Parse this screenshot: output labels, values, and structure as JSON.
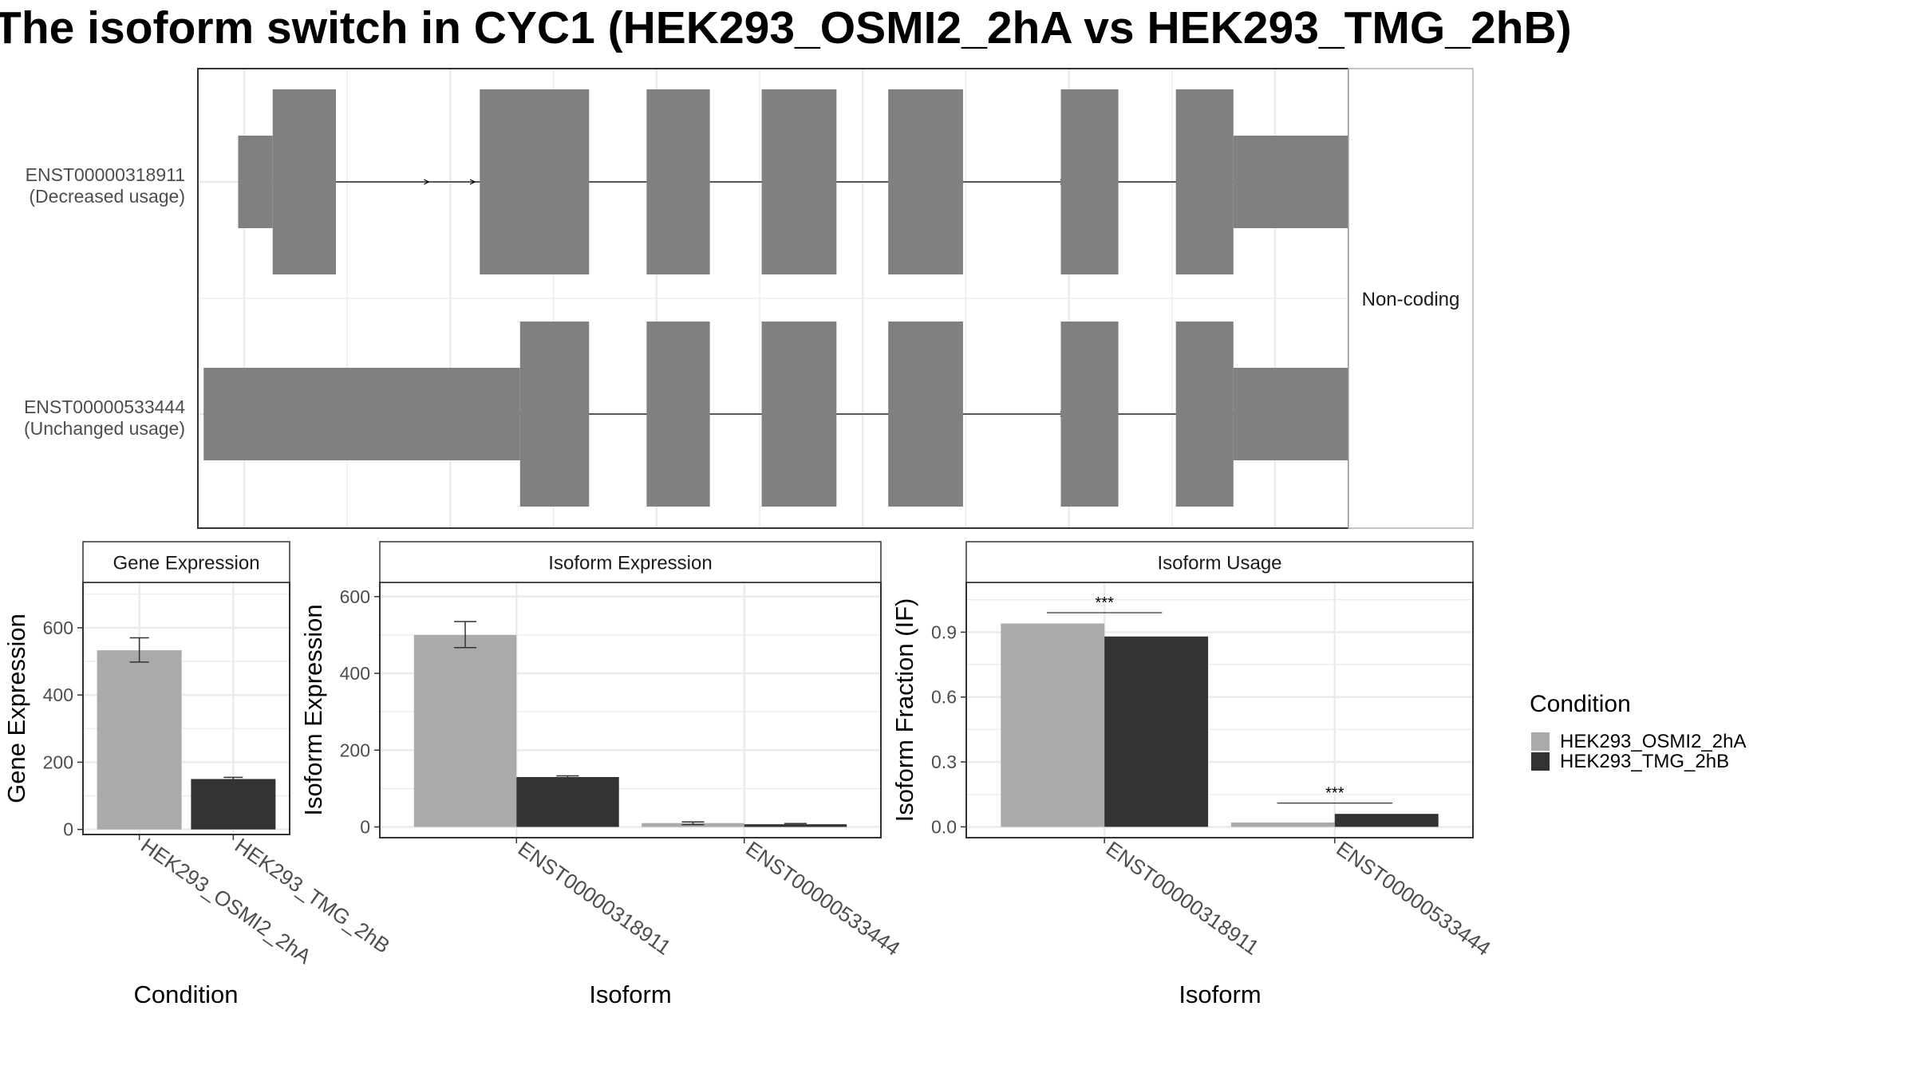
{
  "title": "The isoform switch in CYC1 (HEK293_OSMI2_2hA vs HEK293_TMG_2hB)",
  "colors": {
    "condition_a": "#aaaaaa",
    "condition_b": "#333333",
    "exon": "#808080",
    "grid": "#ebebeb",
    "panel_border": "#333333",
    "strip_border": "#b3b3b3",
    "text_dark": "#1a1a1a",
    "tick_text": "#4d4d4d"
  },
  "legend": {
    "title": "Condition",
    "items": [
      {
        "label": "HEK293_OSMI2_2hA",
        "color": "#aaaaaa"
      },
      {
        "label": "HEK293_TMG_2hB",
        "color": "#333333"
      }
    ]
  },
  "structure": {
    "facet_label": "Non-coding",
    "transcripts": [
      {
        "id": "ENST00000318911",
        "usage_label": "(Decreased usage)",
        "exons": [
          {
            "start": 0.035,
            "end": 0.065,
            "type": "utr"
          },
          {
            "start": 0.065,
            "end": 0.12,
            "type": "cds"
          },
          {
            "start": 0.245,
            "end": 0.34,
            "type": "cds"
          },
          {
            "start": 0.39,
            "end": 0.445,
            "type": "cds"
          },
          {
            "start": 0.49,
            "end": 0.555,
            "type": "cds"
          },
          {
            "start": 0.6,
            "end": 0.665,
            "type": "cds"
          },
          {
            "start": 0.75,
            "end": 0.8,
            "type": "cds"
          },
          {
            "start": 0.85,
            "end": 0.9,
            "type": "cds"
          },
          {
            "start": 0.9,
            "end": 1.027,
            "type": "utr"
          }
        ],
        "arrows": [
          0.2,
          0.24,
          0.285,
          0.753,
          0.797
        ]
      },
      {
        "id": "ENST00000533444",
        "usage_label": "(Unchanged usage)",
        "exons": [
          {
            "start": 0.005,
            "end": 0.28,
            "type": "utr"
          },
          {
            "start": 0.28,
            "end": 0.34,
            "type": "cds"
          },
          {
            "start": 0.39,
            "end": 0.445,
            "type": "cds"
          },
          {
            "start": 0.49,
            "end": 0.555,
            "type": "cds"
          },
          {
            "start": 0.6,
            "end": 0.665,
            "type": "cds"
          },
          {
            "start": 0.75,
            "end": 0.8,
            "type": "cds"
          },
          {
            "start": 0.85,
            "end": 0.9,
            "type": "cds"
          },
          {
            "start": 0.9,
            "end": 1.027,
            "type": "utr"
          }
        ],
        "arrows": [
          0.753,
          0.797
        ]
      }
    ]
  },
  "chart_data": [
    {
      "type": "bar",
      "title": "Gene Expression",
      "xlabel": "Condition",
      "ylabel": "Gene Expression",
      "categories": [
        "HEK293_OSMI2_2hA",
        "HEK293_TMG_2hB"
      ],
      "values": [
        533,
        150
      ],
      "error": [
        [
          498,
          570
        ],
        [
          145,
          155
        ]
      ],
      "yticks": [
        0,
        200,
        400,
        600
      ],
      "ylim": [
        -15,
        735
      ],
      "grid": true
    },
    {
      "type": "bar",
      "title": "Isoform Expression",
      "xlabel": "Isoform",
      "ylabel": "Isoform Expression",
      "categories": [
        "ENST00000318911",
        "ENST00000533444"
      ],
      "series": [
        {
          "name": "HEK293_OSMI2_2hA",
          "values": [
            500,
            10
          ],
          "error": [
            [
              467,
              535
            ],
            [
              6,
              13
            ]
          ]
        },
        {
          "name": "HEK293_TMG_2hB",
          "values": [
            130,
            7
          ],
          "error": [
            [
              127,
              133
            ],
            [
              5,
              9
            ]
          ]
        }
      ],
      "yticks": [
        0,
        200,
        400,
        600
      ],
      "ylim": [
        -28,
        637
      ],
      "grid": true
    },
    {
      "type": "bar",
      "title": "Isoform Usage",
      "xlabel": "Isoform",
      "ylabel": "Isoform Fraction (IF)",
      "categories": [
        "ENST00000318911",
        "ENST00000533444"
      ],
      "series": [
        {
          "name": "HEK293_OSMI2_2hA",
          "values": [
            0.94,
            0.02
          ]
        },
        {
          "name": "HEK293_TMG_2hB",
          "values": [
            0.88,
            0.06
          ]
        }
      ],
      "significance": [
        {
          "category": "ENST00000318911",
          "label": "***",
          "y": 0.99
        },
        {
          "category": "ENST00000533444",
          "label": "***",
          "y": 0.11
        }
      ],
      "yticks": [
        0,
        0.3,
        0.6,
        0.9
      ],
      "ytick_labels": [
        "0.0",
        "0.3",
        "0.6",
        "0.9"
      ],
      "ylim": [
        -0.05,
        1.13
      ],
      "grid": true
    }
  ]
}
